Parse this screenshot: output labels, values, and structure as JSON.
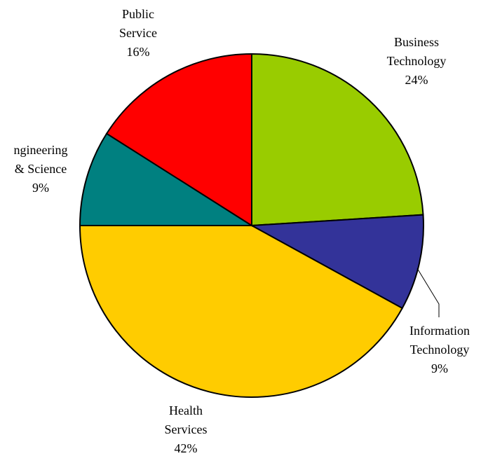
{
  "chart_data": {
    "type": "pie",
    "title": "",
    "slices": [
      {
        "label": [
          "Business",
          "Technology"
        ],
        "percent_label": "24%",
        "value": 24,
        "color": "#99cc00"
      },
      {
        "label": [
          "Information",
          "Technology"
        ],
        "percent_label": "9%",
        "value": 9,
        "color": "#333399"
      },
      {
        "label": [
          "Health",
          "Services"
        ],
        "percent_label": "42%",
        "value": 42,
        "color": "#ffcc00"
      },
      {
        "label": [
          "ngineering",
          "& Science"
        ],
        "percent_label": "9%",
        "value": 9,
        "color": "#008080"
      },
      {
        "label": [
          "Public",
          "Service"
        ],
        "percent_label": "16%",
        "value": 16,
        "color": "#ff0000"
      }
    ]
  }
}
